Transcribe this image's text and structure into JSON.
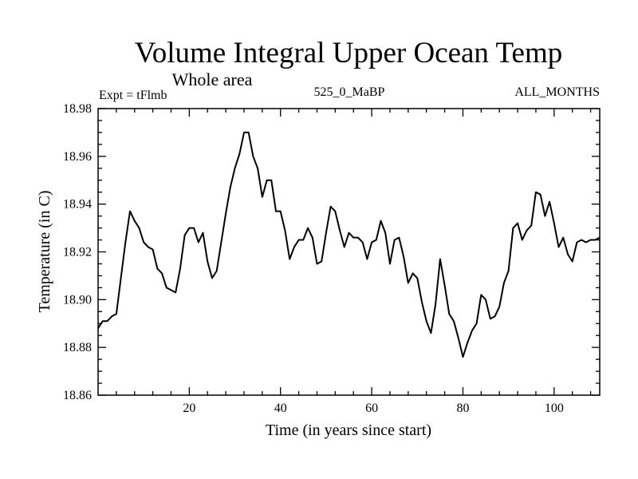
{
  "chart_data": {
    "type": "line",
    "title": "Volume Integral Upper Ocean Temp",
    "subtitle": "Whole area",
    "left_label": "Expt = tFlmb",
    "center_label": "525_0_MaBP",
    "right_label": "ALL_MONTHS",
    "xlabel": "Time (in years since start)",
    "ylabel": "Temperature (in C)",
    "xlim": [
      0,
      110
    ],
    "ylim": [
      18.86,
      18.98
    ],
    "x_ticks": [
      20,
      40,
      60,
      80,
      100
    ],
    "y_ticks": [
      "18.86",
      "18.88",
      "18.90",
      "18.92",
      "18.94",
      "18.96",
      "18.98"
    ],
    "grid": false,
    "series": [
      {
        "name": "Temperature",
        "color": "#000000",
        "x": [
          0,
          1,
          2,
          3,
          4,
          5,
          6,
          7,
          8,
          9,
          10,
          11,
          12,
          13,
          14,
          15,
          16,
          17,
          18,
          19,
          20,
          21,
          22,
          23,
          24,
          25,
          26,
          27,
          28,
          29,
          30,
          31,
          32,
          33,
          34,
          35,
          36,
          37,
          38,
          39,
          40,
          41,
          42,
          43,
          44,
          45,
          46,
          47,
          48,
          49,
          50,
          51,
          52,
          53,
          54,
          55,
          56,
          57,
          58,
          59,
          60,
          61,
          62,
          63,
          64,
          65,
          66,
          67,
          68,
          69,
          70,
          71,
          72,
          73,
          74,
          75,
          76,
          77,
          78,
          79,
          80,
          81,
          82,
          83,
          84,
          85,
          86,
          87,
          88,
          89,
          90,
          91,
          92,
          93,
          94,
          95,
          96,
          97,
          98,
          99,
          100,
          101,
          102,
          103,
          104,
          105,
          106,
          107,
          108,
          109,
          110
        ],
        "values": [
          18.888,
          18.891,
          18.891,
          18.893,
          18.894,
          18.909,
          18.924,
          18.937,
          18.933,
          18.93,
          18.924,
          18.922,
          18.921,
          18.913,
          18.911,
          18.905,
          18.904,
          18.903,
          18.913,
          18.927,
          18.93,
          18.93,
          18.924,
          18.928,
          18.916,
          18.909,
          18.912,
          18.924,
          18.936,
          18.947,
          18.955,
          18.961,
          18.97,
          18.97,
          18.96,
          18.955,
          18.943,
          18.95,
          18.95,
          18.937,
          18.937,
          18.929,
          18.917,
          18.922,
          18.925,
          18.925,
          18.93,
          18.926,
          18.915,
          18.916,
          18.928,
          18.939,
          18.937,
          18.929,
          18.922,
          18.928,
          18.926,
          18.926,
          18.924,
          18.917,
          18.924,
          18.925,
          18.933,
          18.928,
          18.915,
          18.925,
          18.926,
          18.918,
          18.907,
          18.911,
          18.909,
          18.899,
          18.891,
          18.886,
          18.898,
          18.917,
          18.906,
          18.894,
          18.891,
          18.884,
          18.876,
          18.882,
          18.887,
          18.89,
          18.902,
          18.9,
          18.892,
          18.893,
          18.897,
          18.907,
          18.912,
          18.93,
          18.932,
          18.925,
          18.929,
          18.931,
          18.945,
          18.944,
          18.935,
          18.941,
          18.932,
          18.922,
          18.926,
          18.919,
          18.916,
          18.924,
          18.925,
          18.924,
          18.925,
          18.925,
          18.926
        ]
      }
    ]
  }
}
